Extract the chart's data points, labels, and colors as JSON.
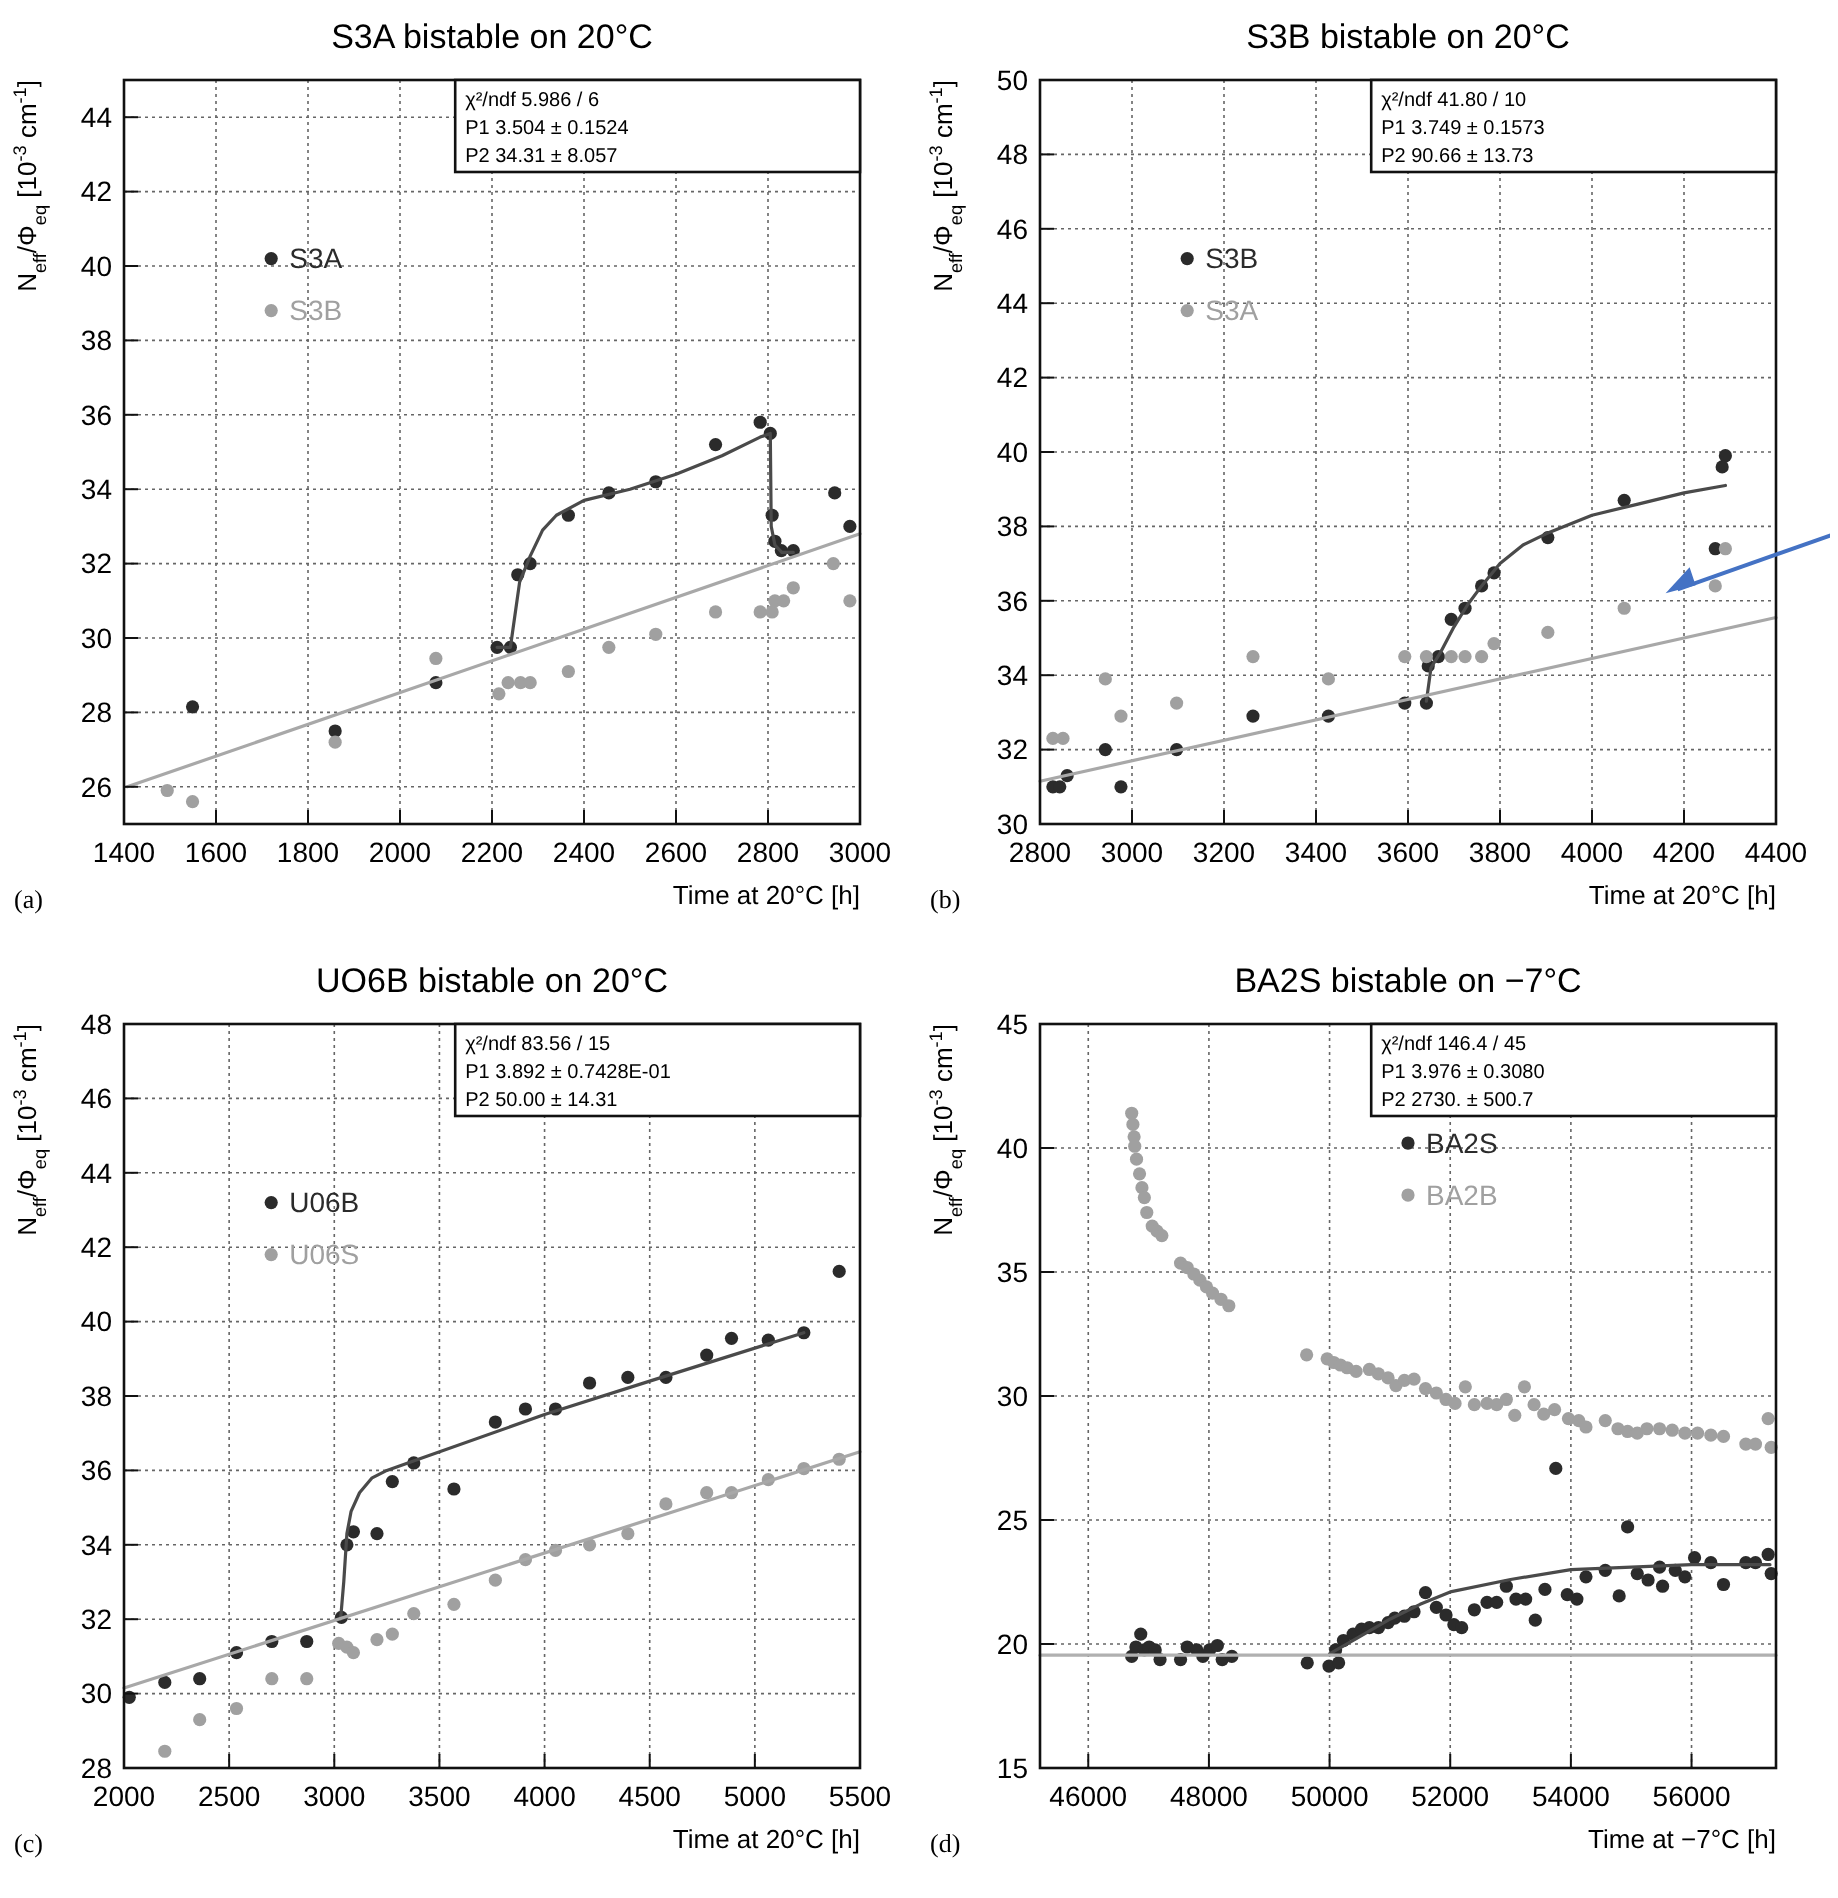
{
  "chart_data": [
    {
      "type": "scatter",
      "title": "S3A bistable on 20°C",
      "xlabel": "Time at 20°C [h]",
      "ylabel": "N$_{eff}$/Φ$_{eq}$ [10$^{-3}$ cm$^{-1}$]",
      "xlim": [
        1400,
        3000
      ],
      "xticks": [
        1400,
        1600,
        1800,
        2000,
        2200,
        2400,
        2600,
        2800,
        3000
      ],
      "ylim": [
        25,
        45
      ],
      "yticks": [
        26,
        28,
        30,
        32,
        34,
        36,
        38,
        40,
        42,
        44
      ],
      "grid": true,
      "legend": "top left",
      "marker": "circle",
      "annotations": [
        "χ²/ndf 5.986 / 6",
        "P1 3.504 ± 0.1524",
        "P2 34.31 ± 8.057",
        "(a)"
      ],
      "series": [
        {
          "name": "S3A",
          "color": "#2b2b2b",
          "x": [
            1549,
            1859,
            2078,
            2211,
            2240,
            2256,
            2283,
            2366,
            2454,
            2556,
            2686,
            2783,
            2805,
            2809,
            2815,
            2829,
            2855,
            2945,
            2978
          ],
          "values": [
            28.15,
            27.5,
            28.8,
            29.75,
            29.75,
            31.7,
            32.0,
            33.3,
            33.9,
            34.2,
            35.2,
            35.8,
            35.5,
            33.3,
            32.6,
            32.35,
            32.35,
            33.9,
            33.0
          ]
        },
        {
          "name": "S3B",
          "color": "#a0a0a0",
          "x": [
            1494,
            1549,
            1859,
            2078,
            2215,
            2235,
            2262,
            2283,
            2366,
            2454,
            2556,
            2686,
            2783,
            2809,
            2815,
            2834,
            2855,
            2942,
            2978
          ],
          "values": [
            25.9,
            25.6,
            27.2,
            29.45,
            28.5,
            28.8,
            28.8,
            28.8,
            29.1,
            29.75,
            30.1,
            30.7,
            30.7,
            30.7,
            31.0,
            31.0,
            31.35,
            32.0,
            31.0
          ]
        },
        {
          "type": "line",
          "marker": "none",
          "color": "#4a4a4a",
          "x": [
            2211,
            2240,
            2260,
            2283,
            2310,
            2340,
            2400,
            2500,
            2600,
            2700,
            2783,
            2805,
            2807,
            2815,
            2830,
            2855
          ],
          "values": [
            29.75,
            29.75,
            31.5,
            32.2,
            32.9,
            33.3,
            33.7,
            34.0,
            34.4,
            34.9,
            35.4,
            35.5,
            33.0,
            32.5,
            32.3,
            32.3
          ]
        },
        {
          "type": "line",
          "marker": "none",
          "color": "#a8a8a8",
          "x": [
            1407,
            3000
          ],
          "values": [
            26.0,
            32.8
          ]
        }
      ]
    },
    {
      "type": "scatter",
      "title": "S3B bistable on 20°C",
      "xlabel": "Time at 20°C [h]",
      "ylabel": "N$_{eff}$/Φ$_{eq}$ [10$^{-3}$ cm$^{-1}$]",
      "xlim": [
        2800,
        4400
      ],
      "xticks": [
        2800,
        3000,
        3200,
        3400,
        3600,
        3800,
        4000,
        4200,
        4400
      ],
      "ylim": [
        30,
        50
      ],
      "yticks": [
        30,
        32,
        34,
        36,
        38,
        40,
        42,
        44,
        46,
        48,
        50
      ],
      "grid": true,
      "legend": "top left",
      "marker": "circle",
      "annotations": [
        "χ²/ndf 41.80 / 10",
        "P1 3.749 ± 0.1573",
        "P2 90.66 ± 13.73",
        "(b)"
      ],
      "series": [
        {
          "name": "S3B",
          "color": "#2b2b2b",
          "x": [
            2828,
            2843,
            2859,
            2942,
            2976,
            3097,
            3263,
            3427,
            3593,
            3640,
            3644,
            3666,
            3694,
            3724,
            3760,
            3787,
            3904,
            4070,
            4268,
            4283,
            4290
          ],
          "values": [
            31.0,
            31.0,
            31.3,
            32.0,
            31.0,
            32.0,
            32.9,
            32.9,
            33.25,
            33.25,
            34.25,
            34.5,
            35.5,
            35.8,
            36.4,
            36.75,
            37.7,
            38.7,
            37.4,
            39.6,
            39.9
          ]
        },
        {
          "name": "S3A",
          "color": "#a0a0a0",
          "x": [
            2828,
            2850,
            2942,
            2976,
            3097,
            3263,
            3427,
            3593,
            3640,
            3694,
            3724,
            3760,
            3787,
            3904,
            4070,
            4268,
            4290
          ],
          "values": [
            32.3,
            32.3,
            33.9,
            32.9,
            33.25,
            34.5,
            33.9,
            34.5,
            34.5,
            34.5,
            34.5,
            34.5,
            34.85,
            35.15,
            35.8,
            36.4,
            37.4
          ]
        },
        {
          "type": "line",
          "marker": "none",
          "color": "#4a4a4a",
          "x": [
            3640,
            3650,
            3670,
            3700,
            3730,
            3760,
            3800,
            3850,
            3900,
            4000,
            4100,
            4200,
            4290
          ],
          "values": [
            33.3,
            34.2,
            34.6,
            35.3,
            35.9,
            36.4,
            37.0,
            37.5,
            37.8,
            38.3,
            38.6,
            38.9,
            39.1
          ]
        },
        {
          "type": "line",
          "marker": "none",
          "color": "#a8a8a8",
          "x": [
            2800,
            4400
          ],
          "values": [
            31.15,
            35.55
          ]
        }
      ]
    },
    {
      "type": "scatter",
      "title": "UO6B bistable on 20°C",
      "xlabel": "Time at 20°C [h]",
      "ylabel": "N$_{eff}$/Φ$_{eq}$ [10$^{-3}$ cm$^{-1}$]",
      "xlim": [
        2000,
        5500
      ],
      "xticks": [
        2000,
        2500,
        3000,
        3500,
        4000,
        4500,
        5000,
        5500
      ],
      "ylim": [
        28,
        48
      ],
      "yticks": [
        28,
        30,
        32,
        34,
        36,
        38,
        40,
        42,
        44,
        46,
        48
      ],
      "grid": true,
      "legend": "top left",
      "marker": "circle",
      "annotations": [
        "χ²/ndf 83.56 / 15",
        "P1 3.892 ± 0.7428E-01",
        "P2 50.00 ± 14.31",
        "(c)"
      ],
      "series": [
        {
          "name": "U06B",
          "color": "#2b2b2b",
          "x": [
            2025,
            2194,
            2360,
            2535,
            2703,
            2869,
            3034,
            3060,
            3091,
            3203,
            3276,
            3378,
            3569,
            3766,
            3909,
            4052,
            4214,
            4396,
            4577,
            4771,
            4889,
            5064,
            5233,
            5401
          ],
          "values": [
            29.9,
            30.3,
            30.4,
            31.1,
            31.4,
            31.4,
            32.05,
            34.0,
            34.35,
            34.3,
            35.7,
            36.2,
            35.5,
            37.3,
            37.65,
            37.65,
            38.35,
            38.5,
            38.5,
            39.1,
            39.55,
            39.5,
            39.7,
            41.35
          ]
        },
        {
          "name": "U06S",
          "color": "#a0a0a0",
          "x": [
            2194,
            2360,
            2535,
            2703,
            2869,
            3021,
            3060,
            3091,
            3203,
            3276,
            3378,
            3569,
            3766,
            3909,
            4052,
            4214,
            4396,
            4577,
            4771,
            4889,
            5064,
            5233,
            5401
          ],
          "values": [
            28.45,
            29.3,
            29.6,
            30.4,
            30.4,
            31.35,
            31.25,
            31.1,
            31.45,
            31.6,
            32.15,
            32.4,
            33.05,
            33.6,
            33.85,
            34.0,
            34.3,
            35.1,
            35.4,
            35.4,
            35.75,
            36.05,
            36.3
          ]
        },
        {
          "type": "line",
          "marker": "none",
          "color": "#4a4a4a",
          "x": [
            3030,
            3045,
            3060,
            3080,
            3120,
            3180,
            3250,
            3400,
            4000,
            4500,
            5233
          ],
          "values": [
            32.0,
            33.0,
            34.3,
            34.9,
            35.4,
            35.8,
            36.0,
            36.3,
            37.5,
            38.4,
            39.7
          ]
        },
        {
          "type": "line",
          "marker": "none",
          "color": "#a8a8a8",
          "x": [
            2000,
            5500
          ],
          "values": [
            30.15,
            36.5
          ]
        }
      ]
    },
    {
      "type": "scatter",
      "title": "BA2S bistable on −7°C",
      "xlabel": "Time at −7°C [h]",
      "ylabel": "N$_{eff}$/Φ$_{eq}$ [10$^{-3}$ cm$^{-1}$]",
      "xlim": [
        45200,
        57400
      ],
      "xticks": [
        46000,
        48000,
        50000,
        52000,
        54000,
        56000
      ],
      "ylim": [
        15,
        45
      ],
      "yticks": [
        15,
        20,
        25,
        30,
        35,
        40,
        45
      ],
      "grid": true,
      "legend": "top",
      "marker": "circle",
      "annotations": [
        "χ²/ndf 146.4 / 45",
        "P1 3.976 ± 0.3080",
        "P2 2730. ± 500.7",
        "(d)"
      ],
      "series": [
        {
          "name": "BA2S",
          "color": "#2b2b2b",
          "x": [
            46720,
            46790,
            46870,
            46930,
            47010,
            47110,
            47190,
            47530,
            47640,
            47800,
            47900,
            48010,
            48140,
            48220,
            48380,
            49630,
            49990,
            50100,
            50150,
            50230,
            50390,
            50530,
            50660,
            50810,
            50970,
            51080,
            51240,
            51400,
            51590,
            51770,
            51930,
            52060,
            52190,
            52400,
            52610,
            52770,
            52930,
            53090,
            53250,
            53410,
            53570,
            53750,
            53940,
            54100,
            54250,
            54570,
            54800,
            54940,
            55100,
            55280,
            55470,
            55520,
            55730,
            55890,
            56050,
            56320,
            56530,
            56900,
            57060,
            57270,
            57320
          ],
          "values": [
            19.5,
            19.88,
            20.4,
            19.76,
            19.88,
            19.76,
            19.37,
            19.37,
            19.88,
            19.76,
            19.5,
            19.76,
            19.94,
            19.37,
            19.5,
            19.24,
            19.11,
            19.76,
            19.24,
            20.14,
            20.4,
            20.6,
            20.66,
            20.66,
            20.86,
            21.04,
            21.12,
            21.3,
            22.07,
            21.48,
            21.17,
            20.78,
            20.66,
            21.38,
            21.68,
            21.68,
            22.33,
            21.81,
            21.81,
            20.96,
            22.2,
            27.08,
            21.99,
            21.81,
            22.71,
            22.97,
            21.94,
            24.72,
            22.84,
            22.58,
            23.1,
            22.33,
            22.97,
            22.71,
            23.48,
            23.28,
            22.4,
            23.28,
            23.28,
            23.61,
            22.84
          ]
        },
        {
          "name": "BA2B",
          "color": "#a0a0a0",
          "x": [
            46720,
            46740,
            46760,
            46770,
            46800,
            46850,
            46890,
            46930,
            46970,
            47060,
            47140,
            47220,
            47530,
            47640,
            47750,
            47850,
            47960,
            48060,
            48200,
            48330,
            49620,
            49960,
            50070,
            50180,
            50290,
            50440,
            50660,
            50810,
            50970,
            51100,
            51240,
            51400,
            51590,
            51770,
            51930,
            52080,
            52250,
            52400,
            52610,
            52770,
            52930,
            53070,
            53230,
            53390,
            53550,
            53730,
            53960,
            54130,
            54250,
            54570,
            54780,
            54940,
            55100,
            55260,
            55470,
            55680,
            55890,
            56100,
            56320,
            56530,
            56900,
            57060,
            57270,
            57320
          ],
          "values": [
            41.4,
            40.95,
            40.45,
            40.07,
            39.55,
            38.96,
            38.4,
            38.0,
            37.4,
            36.85,
            36.65,
            36.47,
            35.36,
            35.18,
            34.92,
            34.67,
            34.4,
            34.15,
            33.9,
            33.64,
            31.66,
            31.5,
            31.35,
            31.25,
            31.14,
            30.99,
            31.07,
            30.89,
            30.73,
            30.42,
            30.63,
            30.68,
            30.3,
            30.12,
            29.86,
            29.7,
            30.37,
            29.65,
            29.7,
            29.65,
            29.86,
            29.22,
            30.37,
            29.65,
            29.27,
            29.45,
            29.09,
            29.01,
            28.75,
            29.01,
            28.68,
            28.57,
            28.5,
            28.68,
            28.68,
            28.62,
            28.5,
            28.5,
            28.42,
            28.37,
            28.06,
            28.06,
            29.09,
            27.93
          ]
        },
        {
          "type": "line",
          "marker": "none",
          "color": "#4a4a4a",
          "x": [
            50000,
            50500,
            51000,
            51500,
            52000,
            53000,
            54000,
            55000,
            56000,
            57300
          ],
          "values": [
            19.6,
            20.3,
            21.0,
            21.6,
            22.1,
            22.6,
            23.0,
            23.1,
            23.2,
            23.2
          ]
        },
        {
          "type": "line",
          "marker": "none",
          "color": "#b0b0b0",
          "x": [
            45200,
            57400
          ],
          "values": [
            19.55,
            19.55
          ]
        }
      ]
    }
  ]
}
